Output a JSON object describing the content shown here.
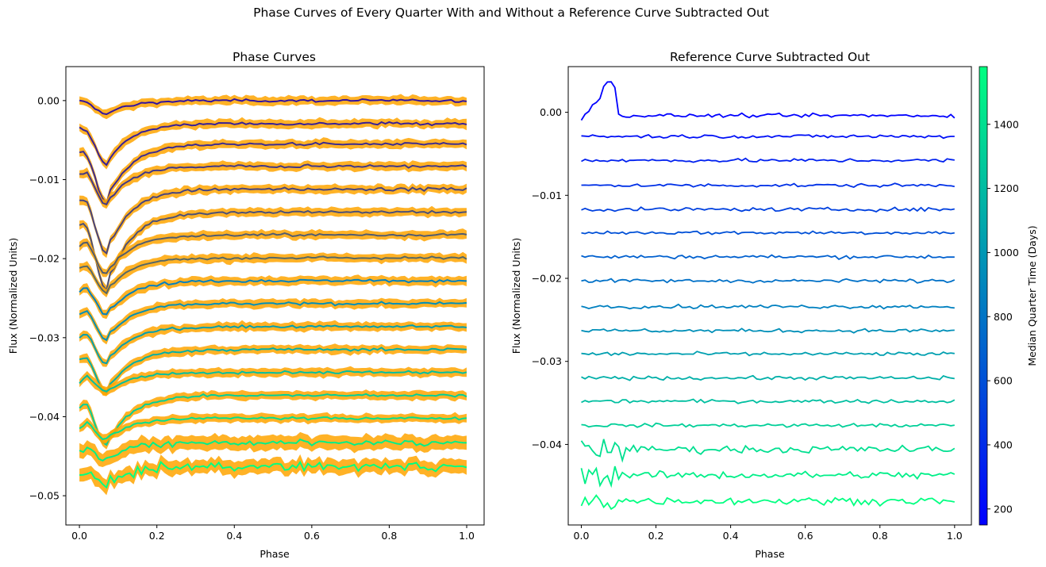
{
  "figure": {
    "title": "Phase Curves of Every Quarter With and Without a Reference Curve Subtracted Out"
  },
  "chart_data": [
    {
      "type": "line",
      "title": "Phase Curves",
      "xlabel": "Phase",
      "ylabel": "Flux (Normalized Units)",
      "xlim": [
        -0.035,
        1.045
      ],
      "ylim": [
        -0.0537,
        0.0043
      ],
      "xticks": [
        "0.0",
        "0.2",
        "0.4",
        "0.6",
        "0.8",
        "1.0"
      ],
      "yticks": [
        "0.00",
        "−0.01",
        "−0.02",
        "−0.03",
        "−0.04",
        "−0.05"
      ],
      "ytick_values": [
        0.0,
        -0.01,
        -0.02,
        -0.03,
        -0.04,
        -0.05
      ],
      "envelope_color": "#ffa500",
      "curve_count": 17,
      "curve_offsets": [
        0.0,
        -0.0029,
        -0.0055,
        -0.0083,
        -0.0112,
        -0.0141,
        -0.017,
        -0.0199,
        -0.0228,
        -0.0257,
        -0.0286,
        -0.0315,
        -0.0344,
        -0.0373,
        -0.0402,
        -0.0433,
        -0.0463
      ],
      "transit_depths": [
        0.0017,
        0.0052,
        0.0074,
        0.0049,
        0.0082,
        0.0098,
        0.005,
        0.0045,
        0.0043,
        0.0046,
        0.0047,
        0.0055,
        0.0025,
        0.0064,
        0.0027,
        0.0022,
        0.0025
      ],
      "transit_center": 0.07,
      "color_by": "Median Quarter Time (Days)"
    },
    {
      "type": "line",
      "title": "Reference Curve Subtracted Out",
      "xlabel": "Phase",
      "ylabel": "Flux (Normalized Units)",
      "xlim": [
        -0.035,
        1.045
      ],
      "ylim": [
        -0.0497,
        0.0055
      ],
      "xticks": [
        "0.0",
        "0.2",
        "0.4",
        "0.6",
        "0.8",
        "1.0"
      ],
      "yticks": [
        "0.00",
        "−0.01",
        "−0.02",
        "−0.03",
        "−0.04"
      ],
      "ytick_values": [
        0.0,
        -0.01,
        -0.02,
        -0.03,
        -0.04
      ],
      "curve_count": 17,
      "curve_offsets": [
        -0.0004,
        -0.0029,
        -0.0058,
        -0.0088,
        -0.0117,
        -0.0145,
        -0.0174,
        -0.0203,
        -0.0234,
        -0.0263,
        -0.0291,
        -0.032,
        -0.0348,
        -0.0377,
        -0.0406,
        -0.0437,
        -0.0468
      ],
      "color_by": "Median Quarter Time (Days)"
    }
  ],
  "colorbar": {
    "label": "Median Quarter Time (Days)",
    "range": [
      150,
      1580
    ],
    "ticks": [
      "200",
      "400",
      "600",
      "800",
      "1000",
      "1200",
      "1400"
    ],
    "tick_values": [
      200,
      400,
      600,
      800,
      1000,
      1200,
      1400
    ],
    "colors": [
      "#0000ff",
      "#00ff80"
    ]
  }
}
